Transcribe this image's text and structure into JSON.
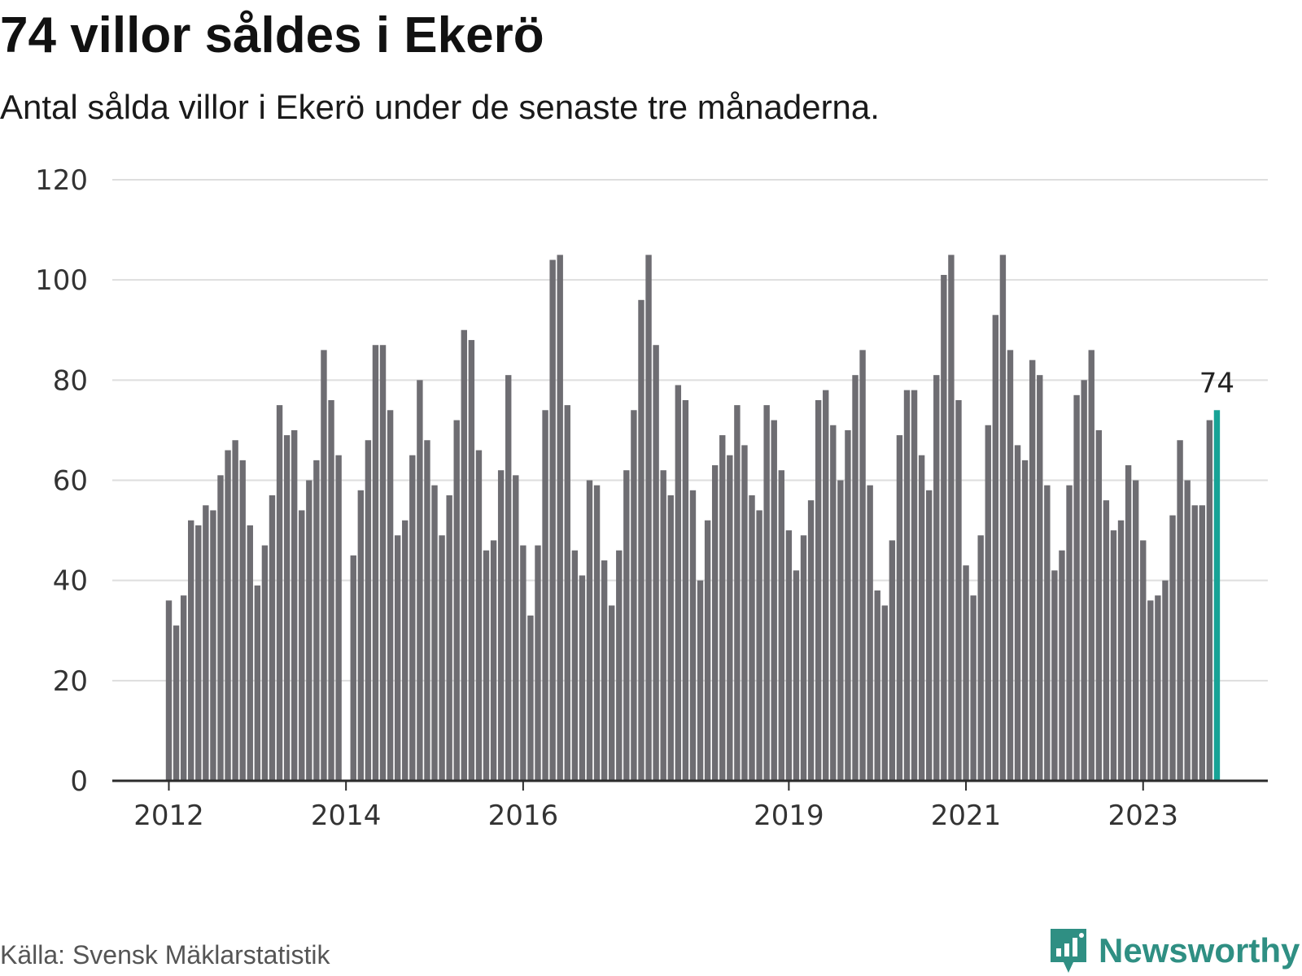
{
  "header": {
    "title": "74 villor såldes i Ekerö",
    "subtitle": "Antal sålda villor i Ekerö under de senaste tre månaderna."
  },
  "footer": {
    "source": "Källa: Svensk Mäklarstatistik",
    "brand": "Newsworthy"
  },
  "colors": {
    "bar": "#6e6d72",
    "highlight": "#17a396",
    "grid": "#dedede",
    "axis": "#2b2b2b",
    "brand": "#2f8f83"
  },
  "chart_data": {
    "type": "bar",
    "title": "74 villor såldes i Ekerö",
    "subtitle": "Antal sålda villor i Ekerö under de senaste tre månaderna.",
    "xlabel": "",
    "ylabel": "",
    "ylim": [
      0,
      120
    ],
    "yticks": [
      0,
      20,
      40,
      60,
      80,
      100,
      120
    ],
    "grid": true,
    "start_month": "2012-01",
    "xtick_labels": [
      {
        "label": "2012",
        "index": 0
      },
      {
        "label": "2014",
        "index": 24
      },
      {
        "label": "2016",
        "index": 48
      },
      {
        "label": "2019",
        "index": 84
      },
      {
        "label": "2021",
        "index": 108
      },
      {
        "label": "2023",
        "index": 132
      }
    ],
    "highlight_label": "74",
    "highlight_index": 142,
    "values": [
      36,
      31,
      37,
      52,
      51,
      55,
      54,
      61,
      66,
      68,
      64,
      51,
      39,
      47,
      57,
      75,
      69,
      70,
      54,
      60,
      64,
      86,
      76,
      65,
      null,
      45,
      58,
      68,
      87,
      87,
      74,
      49,
      52,
      65,
      80,
      68,
      59,
      49,
      57,
      72,
      90,
      88,
      66,
      46,
      48,
      62,
      81,
      61,
      47,
      33,
      47,
      74,
      104,
      105,
      75,
      46,
      41,
      60,
      59,
      44,
      35,
      46,
      62,
      74,
      96,
      105,
      87,
      62,
      57,
      79,
      76,
      58,
      40,
      52,
      63,
      69,
      65,
      75,
      67,
      57,
      54,
      75,
      72,
      62,
      50,
      42,
      49,
      56,
      76,
      78,
      71,
      60,
      70,
      81,
      86,
      59,
      38,
      35,
      48,
      69,
      78,
      78,
      65,
      58,
      81,
      101,
      105,
      76,
      43,
      37,
      49,
      71,
      93,
      105,
      86,
      67,
      64,
      84,
      81,
      59,
      42,
      46,
      59,
      77,
      80,
      86,
      70,
      56,
      50,
      52,
      63,
      60,
      48,
      36,
      37,
      40,
      53,
      68,
      60,
      55,
      55,
      72,
      74
    ]
  }
}
